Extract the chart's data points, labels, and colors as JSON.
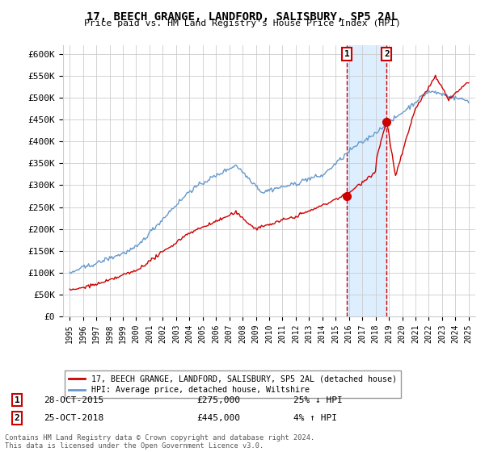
{
  "title": "17, BEECH GRANGE, LANDFORD, SALISBURY, SP5 2AL",
  "subtitle": "Price paid vs. HM Land Registry's House Price Index (HPI)",
  "ylabel_ticks": [
    "£0",
    "£50K",
    "£100K",
    "£150K",
    "£200K",
    "£250K",
    "£300K",
    "£350K",
    "£400K",
    "£450K",
    "£500K",
    "£550K",
    "£600K"
  ],
  "ytick_vals": [
    0,
    50000,
    100000,
    150000,
    200000,
    250000,
    300000,
    350000,
    400000,
    450000,
    500000,
    550000,
    600000
  ],
  "xlim": [
    1994.5,
    2025.5
  ],
  "ylim": [
    0,
    620000
  ],
  "sale1_x": 2015.83,
  "sale1_y": 275000,
  "sale2_x": 2018.83,
  "sale2_y": 445000,
  "legend_house": "17, BEECH GRANGE, LANDFORD, SALISBURY, SP5 2AL (detached house)",
  "legend_hpi": "HPI: Average price, detached house, Wiltshire",
  "sale1_label": "1",
  "sale1_date": "28-OCT-2015",
  "sale1_price": "£275,000",
  "sale1_hpi": "25% ↓ HPI",
  "sale2_label": "2",
  "sale2_date": "25-OCT-2018",
  "sale2_price": "£445,000",
  "sale2_hpi": "4% ↑ HPI",
  "footer": "Contains HM Land Registry data © Crown copyright and database right 2024.\nThis data is licensed under the Open Government Licence v3.0.",
  "house_color": "#cc0000",
  "hpi_color": "#6699cc",
  "sale_marker_color": "#cc0000",
  "vline_color": "#cc0000",
  "shade_color": "#ddeeff",
  "bg_color": "#ffffff",
  "grid_color": "#cccccc"
}
